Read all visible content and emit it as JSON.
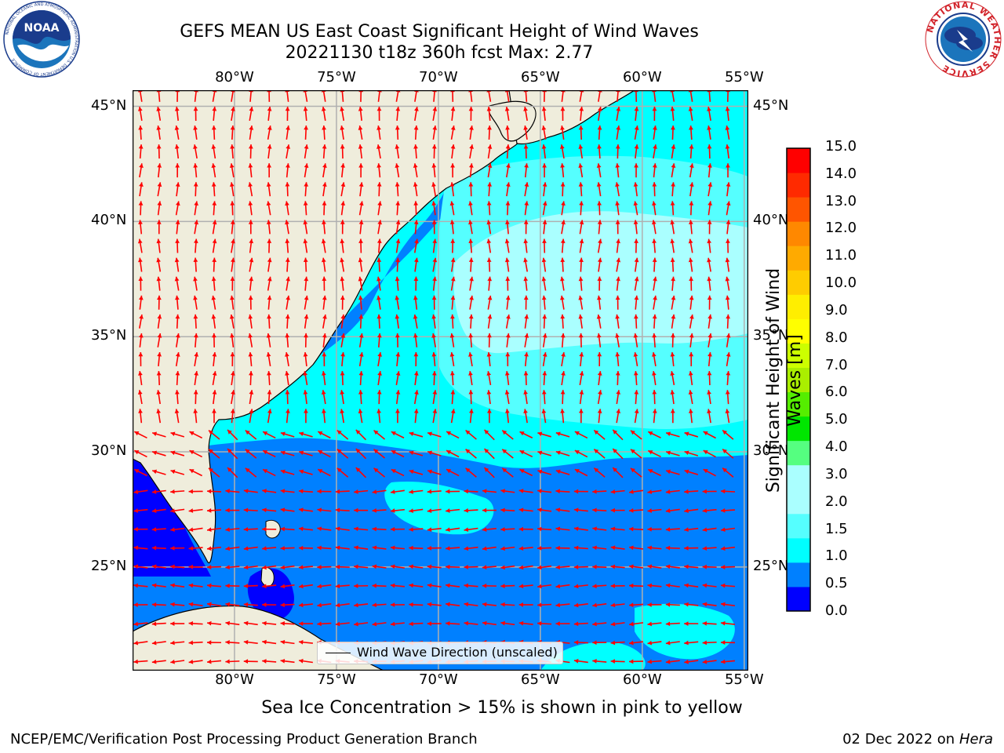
{
  "header": {
    "title_line1": "GEFS MEAN US East Coast Significant Height of Wind Waves",
    "title_line2": "20221130 t18z 360h fcst   Max: 2.77"
  },
  "logos": {
    "left": {
      "name": "NOAA",
      "text": "NOAA",
      "ring_text": "NATIONAL OCEANIC AND ATMOSPHERIC ADMINISTRATION  U.S. DEPARTMENT OF COMMERCE",
      "color": "#1a3c8c"
    },
    "right": {
      "name": "National Weather Service",
      "ring_text": "NATIONAL WEATHER SERVICE",
      "color": "#d2232a"
    }
  },
  "map": {
    "lon_range": [
      -85,
      -54.8
    ],
    "lat_range": [
      20.5,
      45.7
    ],
    "lon_ticks": [
      {
        "value": -80,
        "label": "80°W"
      },
      {
        "value": -75,
        "label": "75°W"
      },
      {
        "value": -70,
        "label": "70°W"
      },
      {
        "value": -65,
        "label": "65°W"
      },
      {
        "value": -60,
        "label": "60°W"
      },
      {
        "value": -55,
        "label": "55°W"
      }
    ],
    "lat_ticks": [
      {
        "value": 45,
        "label": "45°N"
      },
      {
        "value": 40,
        "label": "40°N"
      },
      {
        "value": 35,
        "label": "35°N"
      },
      {
        "value": 30,
        "label": "30°N"
      },
      {
        "value": 25,
        "label": "25°N"
      }
    ],
    "grid": true,
    "land_color": "#efeddc",
    "arrow_color": "#ff0000",
    "legend_label": "Wind Wave Direction (unscaled)",
    "legend_location": "bottom-center"
  },
  "colorbar": {
    "label": "Significant Height of Wind Waves [m]",
    "bounds": [
      0.0,
      0.5,
      1.0,
      1.5,
      2.0,
      2.5,
      3.0,
      4.0,
      5.0,
      6.0,
      7.0,
      8.0,
      9.0,
      10.0,
      11.0,
      12.0,
      13.0,
      14.0,
      15.0
    ],
    "colors": [
      "#0000ff",
      "#0080ff",
      "#00ffff",
      "#55ffff",
      "#aaffff",
      "#aaffff",
      "#55ff80",
      "#00e600",
      "#55ee00",
      "#aaee00",
      "#ccff00",
      "#ffff00",
      "#ffee00",
      "#ffcc00",
      "#ffaa00",
      "#ff8800",
      "#ff5500",
      "#ff2a00",
      "#ff0000"
    ],
    "tick_labels": [
      "0.0",
      "0.5",
      "1.0",
      "1.5",
      "2.0",
      "3.0",
      "4.0",
      "5.0",
      "6.0",
      "7.0",
      "8.0",
      "9.0",
      "10.0",
      "11.0",
      "12.0",
      "13.0",
      "14.0",
      "15.0"
    ]
  },
  "footer": {
    "note": "Sea Ice Concentration > 15% is shown in pink to yellow",
    "credit_left": "NCEP/EMC/Verification Post Processing Product Generation Branch",
    "date": "02 Dec 2022 on",
    "host": "Hera"
  }
}
